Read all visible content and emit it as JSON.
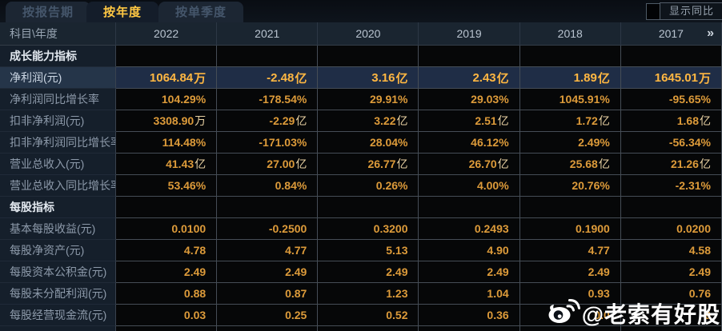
{
  "tabs": [
    {
      "label": "按报告期",
      "active": false
    },
    {
      "label": "按年度",
      "active": true
    },
    {
      "label": "按单季度",
      "active": false
    }
  ],
  "controls": {
    "show_yoy_label": "显示同比",
    "checkbox_checked": false
  },
  "table": {
    "corner_label": "科目\\年度",
    "years": [
      "2022",
      "2021",
      "2020",
      "2019",
      "2018",
      "2017"
    ],
    "more_label": "»",
    "rows": [
      {
        "type": "section",
        "label": "成长能力指标"
      },
      {
        "type": "data",
        "label": "净利润(元)",
        "highlighted": true,
        "values": [
          "1064.84万",
          "-2.48亿",
          "3.16亿",
          "2.43亿",
          "1.89亿",
          "1645.01万"
        ]
      },
      {
        "type": "data",
        "label": "净利润同比增长率",
        "values": [
          "104.29%",
          "-178.54%",
          "29.91%",
          "29.03%",
          "1045.91%",
          "-95.65%"
        ]
      },
      {
        "type": "data",
        "label": "扣非净利润(元)",
        "values": [
          "3308.90万",
          "-2.29亿",
          "3.22亿",
          "2.51亿",
          "1.72亿",
          "1.68亿"
        ]
      },
      {
        "type": "data",
        "label": "扣非净利润同比增长率",
        "values": [
          "114.48%",
          "-171.03%",
          "28.04%",
          "46.12%",
          "2.49%",
          "-56.34%"
        ]
      },
      {
        "type": "data",
        "label": "营业总收入(元)",
        "values": [
          "41.43亿",
          "27.00亿",
          "26.77亿",
          "26.70亿",
          "25.68亿",
          "21.26亿"
        ]
      },
      {
        "type": "data",
        "label": "营业总收入同比增长率",
        "values": [
          "53.46%",
          "0.84%",
          "0.26%",
          "4.00%",
          "20.76%",
          "-2.31%"
        ]
      },
      {
        "type": "section",
        "label": "每股指标"
      },
      {
        "type": "data",
        "label": "基本每股收益(元)",
        "values": [
          "0.0100",
          "-0.2500",
          "0.3200",
          "0.2493",
          "0.1900",
          "0.0200"
        ]
      },
      {
        "type": "data",
        "label": "每股净资产(元)",
        "values": [
          "4.78",
          "4.77",
          "5.13",
          "4.90",
          "4.77",
          "4.58"
        ]
      },
      {
        "type": "data",
        "label": "每股资本公积金(元)",
        "values": [
          "2.49",
          "2.49",
          "2.49",
          "2.49",
          "2.49",
          "2.49"
        ]
      },
      {
        "type": "data",
        "label": "每股未分配利润(元)",
        "values": [
          "0.88",
          "0.87",
          "1.23",
          "1.04",
          "0.93",
          "0.76"
        ]
      },
      {
        "type": "data",
        "label": "每股经营现金流(元)",
        "values": [
          "0.03",
          "0.25",
          "0.52",
          "0.36",
          "0.0",
          "9"
        ]
      }
    ]
  },
  "watermark": {
    "handle": "@老索有好股",
    "icon": "weibo-icon"
  },
  "colors": {
    "value_orange": "#dd9b3a",
    "highlight_gold": "#ffb742",
    "tab_active_text": "#ffc843",
    "highlight_row_bg": "#1f2d46",
    "label_column_bg": "#151f2b",
    "header_bg": "#1a2530",
    "data_cell_bg": "#060708"
  }
}
